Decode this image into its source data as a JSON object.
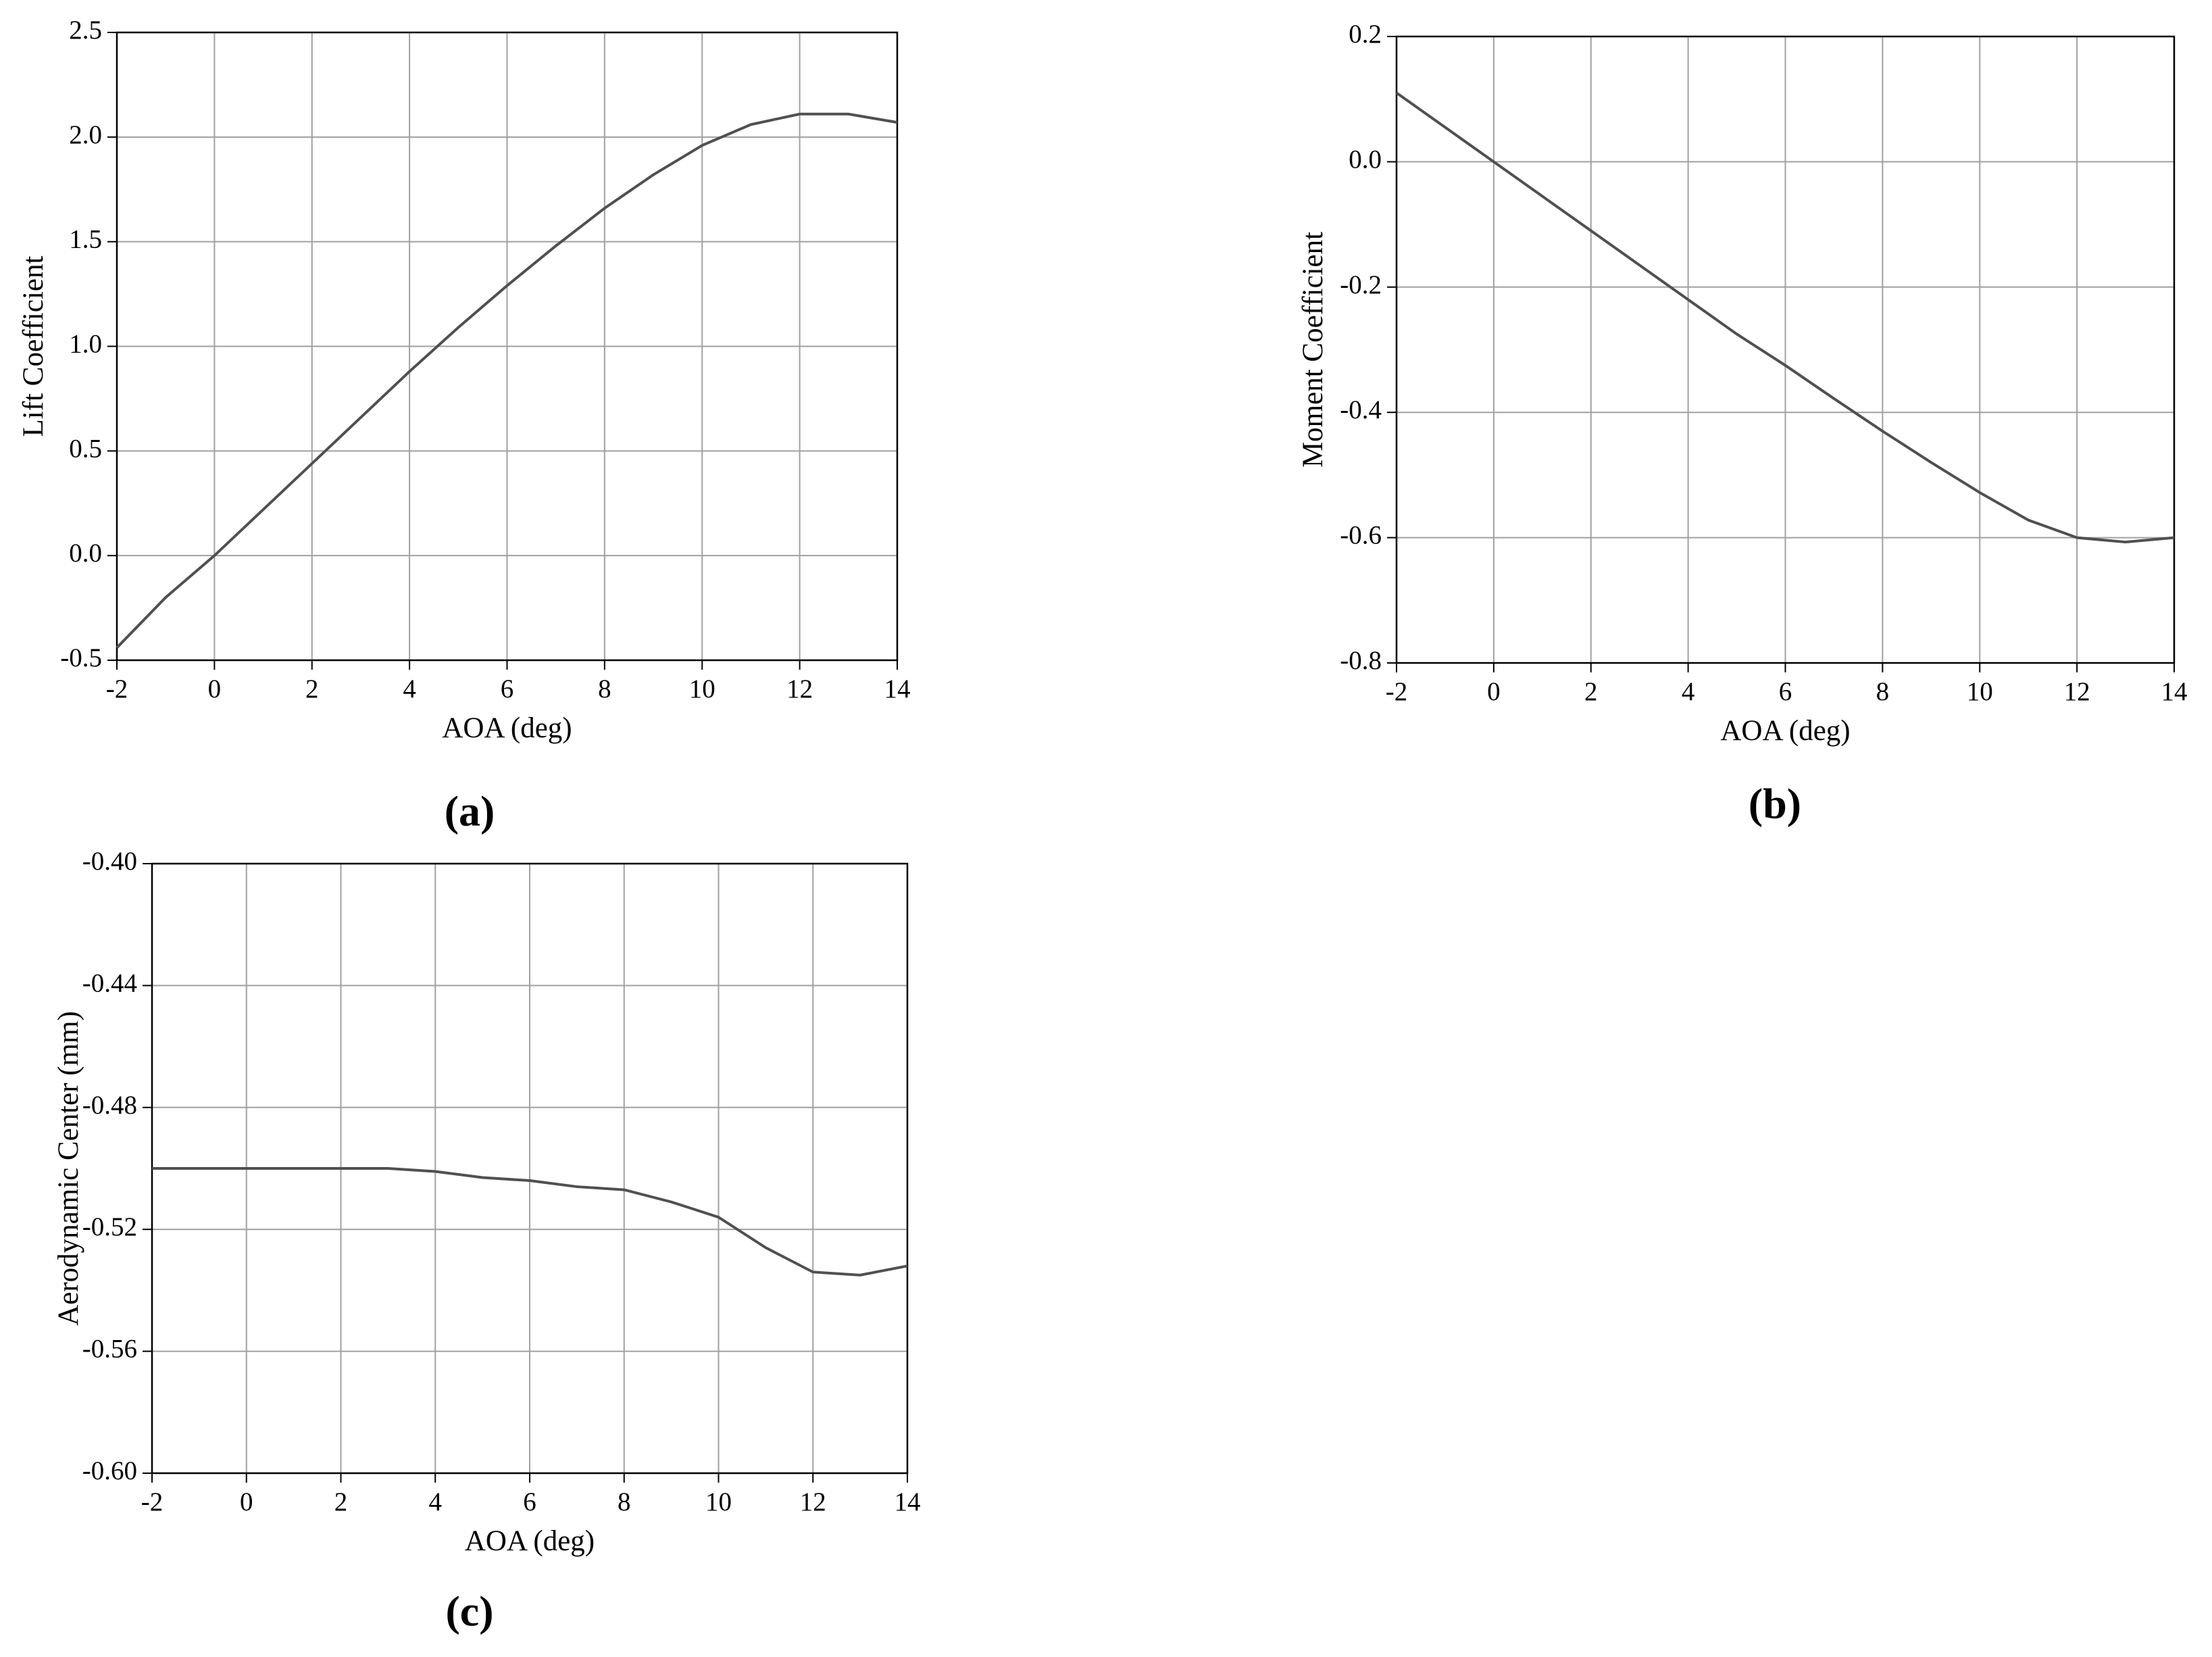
{
  "chart_data": [
    {
      "type": "line",
      "label": "(a)",
      "x_label": "AOA (deg)",
      "y_label": "Lift Coefficient",
      "x": [
        -2,
        -1,
        0,
        1,
        2,
        3,
        4,
        5,
        6,
        7,
        8,
        9,
        10,
        11,
        12,
        13,
        14
      ],
      "series": [
        {
          "color": "#505050",
          "values": [
            -0.44,
            -0.2,
            0.0,
            0.22,
            0.44,
            0.66,
            0.88,
            1.09,
            1.29,
            1.48,
            1.66,
            1.82,
            1.96,
            2.06,
            2.11,
            2.11,
            2.07
          ]
        }
      ],
      "xlim": [
        -2,
        14
      ],
      "xticks": [
        -2,
        0,
        2,
        4,
        6,
        8,
        10,
        12,
        14
      ],
      "ylim": [
        -0.5,
        2.5
      ],
      "yticks": [
        -0.5,
        {
          "value": 0,
          "label": "0.0"
        },
        0.5,
        {
          "value": 1,
          "label": "1.0"
        },
        1.5,
        {
          "value": 2,
          "label": "2.0"
        },
        2.5
      ],
      "grid": true
    },
    {
      "type": "line",
      "label": "(b)",
      "x_label": "AOA (deg)",
      "y_label": "Moment Coefficient",
      "x": [
        -2,
        -1,
        0,
        1,
        2,
        3,
        4,
        5,
        6,
        7,
        8,
        9,
        10,
        11,
        12,
        13,
        14
      ],
      "series": [
        {
          "color": "#505050",
          "values": [
            0.11,
            0.055,
            0.0,
            -0.055,
            -0.11,
            -0.165,
            -0.22,
            -0.275,
            -0.325,
            -0.378,
            -0.43,
            -0.48,
            -0.528,
            -0.572,
            -0.6,
            -0.607,
            -0.6
          ]
        }
      ],
      "xlim": [
        -2,
        14
      ],
      "xticks": [
        -2,
        0,
        2,
        4,
        6,
        8,
        10,
        12,
        14
      ],
      "ylim": [
        -0.8,
        0.2
      ],
      "yticks": [
        -0.8,
        -0.6,
        -0.4,
        -0.2,
        {
          "value": 0,
          "label": "0.0"
        },
        0.2
      ],
      "grid": true
    },
    {
      "type": "line",
      "label": "(c)",
      "x_label": "AOA (deg)",
      "y_label": "Aerodynamic Center (mm)",
      "x": [
        -2,
        -1,
        0,
        1,
        2,
        3,
        4,
        5,
        6,
        7,
        8,
        9,
        10,
        11,
        12,
        13,
        14
      ],
      "series": [
        {
          "color": "#505050",
          "values": [
            -0.5,
            -0.5,
            -0.5,
            -0.5,
            -0.5,
            -0.5,
            -0.501,
            -0.503,
            -0.504,
            -0.506,
            -0.507,
            -0.511,
            -0.516,
            -0.526,
            -0.534,
            -0.535,
            -0.532
          ]
        }
      ],
      "xlim": [
        -2,
        14
      ],
      "xticks": [
        -2,
        0,
        2,
        4,
        6,
        8,
        10,
        12,
        14
      ],
      "ylim": [
        -0.6,
        -0.4
      ],
      "yticks": [
        {
          "value": -0.6,
          "label": "-0.60"
        },
        -0.56,
        -0.52,
        -0.48,
        -0.44,
        {
          "value": -0.4,
          "label": "-0.40"
        }
      ],
      "grid": true
    }
  ]
}
